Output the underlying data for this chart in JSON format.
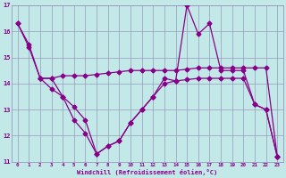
{
  "xlabel": "Windchill (Refroidissement éolien,°C)",
  "bg_color": "#c2e8e8",
  "grid_color": "#9999bb",
  "line_color": "#880088",
  "xlim": [
    -0.5,
    23.5
  ],
  "ylim": [
    11,
    17
  ],
  "yticks": [
    11,
    12,
    13,
    14,
    15,
    16,
    17
  ],
  "xticks": [
    0,
    1,
    2,
    3,
    4,
    5,
    6,
    7,
    8,
    9,
    10,
    11,
    12,
    13,
    14,
    15,
    16,
    17,
    18,
    19,
    20,
    21,
    22,
    23
  ],
  "s1_x": [
    0,
    1,
    2,
    3,
    4,
    5,
    6,
    7,
    8,
    9,
    10,
    11,
    12,
    13,
    14,
    15,
    16,
    17,
    18,
    19,
    20,
    21,
    22,
    23
  ],
  "s1_y": [
    16.3,
    15.4,
    14.2,
    14.2,
    13.5,
    12.6,
    12.1,
    11.3,
    11.6,
    11.8,
    12.5,
    13.0,
    13.5,
    14.2,
    14.1,
    17.0,
    15.9,
    16.3,
    14.5,
    14.5,
    14.5,
    13.2,
    13.0,
    11.2
  ],
  "s2_x": [
    2,
    3,
    4,
    5,
    6,
    7,
    8,
    9,
    10,
    11,
    12,
    13,
    14,
    15,
    16,
    17,
    18,
    19,
    20,
    21,
    22,
    23
  ],
  "s2_y": [
    14.2,
    14.2,
    14.3,
    14.3,
    14.3,
    14.35,
    14.4,
    14.45,
    14.5,
    14.5,
    14.5,
    14.5,
    14.5,
    14.55,
    14.6,
    14.6,
    14.6,
    14.6,
    14.6,
    14.6,
    14.6,
    11.2
  ],
  "s3_x": [
    0,
    1,
    2,
    3,
    4,
    5,
    6,
    7,
    8,
    9,
    10,
    11,
    12,
    13,
    14,
    15,
    16,
    17,
    18,
    19,
    20,
    21,
    22,
    23
  ],
  "s3_y": [
    16.3,
    15.5,
    14.2,
    13.8,
    13.5,
    13.1,
    12.6,
    11.3,
    11.6,
    11.8,
    12.5,
    13.0,
    13.5,
    14.0,
    14.1,
    14.15,
    14.2,
    14.2,
    14.2,
    14.2,
    14.2,
    13.2,
    13.0,
    11.2
  ]
}
